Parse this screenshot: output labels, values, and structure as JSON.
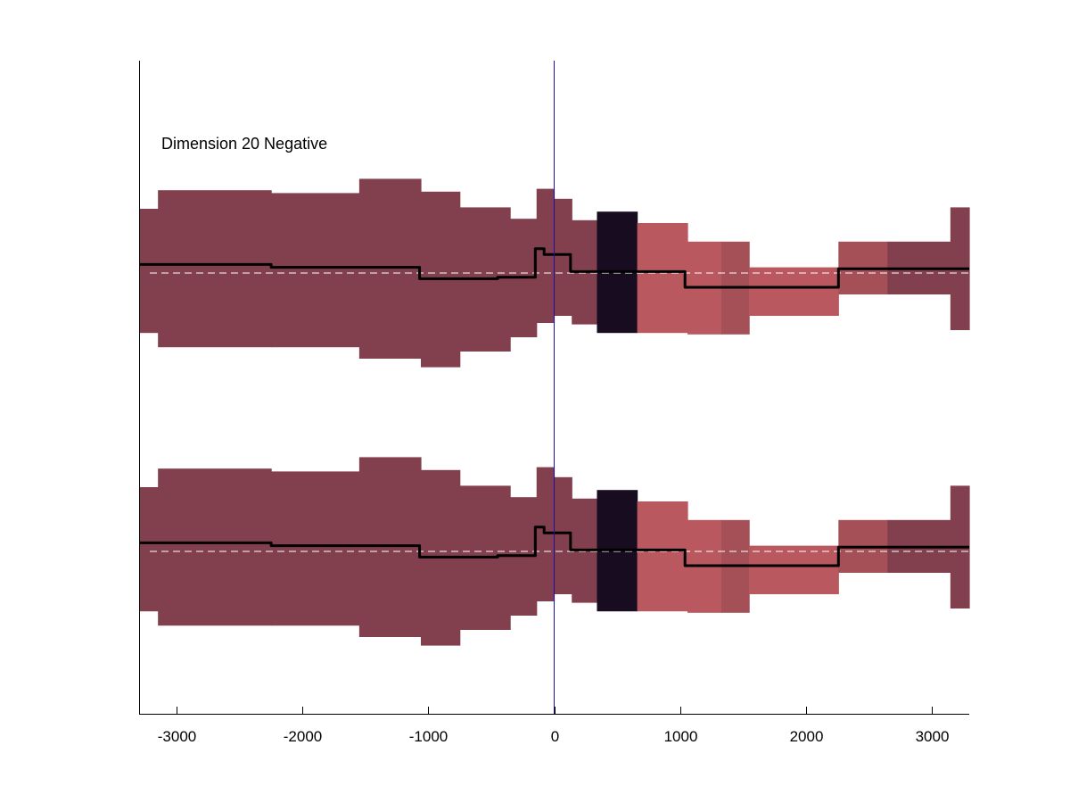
{
  "chart_data": {
    "type": "area",
    "title": "Dimension 20 Negative",
    "xlabel": "",
    "ylabel": "",
    "xlim": [
      -3300,
      3300
    ],
    "x_ticks": [
      -3000,
      -2000,
      -1000,
      0,
      1000,
      2000,
      3000
    ],
    "x_tick_labels": [
      "-3000",
      "-2000",
      "-1000",
      "0",
      "1000",
      "2000",
      "3000"
    ],
    "grid": false,
    "vertical_marker_x": 0,
    "panels": [
      {
        "name": "",
        "offset": 1
      },
      {
        "name": "",
        "offset": 0
      }
    ],
    "band_segments": [
      {
        "x0": -3300,
        "x1": -3150,
        "low": -0.42,
        "high": 0.45,
        "color": "#823f4d"
      },
      {
        "x0": -3150,
        "x1": -2250,
        "low": -0.52,
        "high": 0.58,
        "color": "#823f4d"
      },
      {
        "x0": -2250,
        "x1": -1550,
        "low": -0.52,
        "high": 0.56,
        "color": "#823f4d"
      },
      {
        "x0": -1550,
        "x1": -1060,
        "low": -0.6,
        "high": 0.66,
        "color": "#823f4d"
      },
      {
        "x0": -1060,
        "x1": -750,
        "low": -0.66,
        "high": 0.57,
        "color": "#823f4d"
      },
      {
        "x0": -750,
        "x1": -350,
        "low": -0.55,
        "high": 0.46,
        "color": "#823f4d"
      },
      {
        "x0": -350,
        "x1": -140,
        "low": -0.45,
        "high": 0.38,
        "color": "#823f4d"
      },
      {
        "x0": -140,
        "x1": 0,
        "low": -0.35,
        "high": 0.59,
        "color": "#823f4d"
      },
      {
        "x0": 0,
        "x1": 140,
        "low": -0.3,
        "high": 0.52,
        "color": "#823f4d"
      },
      {
        "x0": 140,
        "x1": 340,
        "low": -0.36,
        "high": 0.37,
        "color": "#823f4d"
      },
      {
        "x0": 340,
        "x1": 660,
        "low": -0.42,
        "high": 0.43,
        "color": "#170c20"
      },
      {
        "x0": 660,
        "x1": 1060,
        "low": -0.42,
        "high": 0.35,
        "color": "#b9595f"
      },
      {
        "x0": 1060,
        "x1": 1330,
        "low": -0.43,
        "high": 0.22,
        "color": "#b9595f"
      },
      {
        "x0": 1330,
        "x1": 1550,
        "low": -0.43,
        "high": 0.22,
        "color": "#a54f57"
      },
      {
        "x0": 1550,
        "x1": 2260,
        "low": -0.3,
        "high": 0.04,
        "color": "#b9595f"
      },
      {
        "x0": 2260,
        "x1": 2650,
        "low": -0.15,
        "high": 0.22,
        "color": "#a54f57"
      },
      {
        "x0": 2650,
        "x1": 3150,
        "low": -0.15,
        "high": 0.22,
        "color": "#823f4d"
      },
      {
        "x0": 3150,
        "x1": 3300,
        "low": -0.4,
        "high": 0.46,
        "color": "#823f4d"
      }
    ],
    "x": [
      -3300,
      -2250,
      -2250,
      -1070,
      -1070,
      -450,
      -450,
      -150,
      -150,
      -80,
      -80,
      130,
      130,
      1040,
      1040,
      2260,
      2260,
      3300
    ],
    "y": [
      0.06,
      0.06,
      0.04,
      0.04,
      -0.04,
      -0.04,
      -0.03,
      -0.03,
      0.17,
      0.17,
      0.13,
      0.13,
      0.01,
      0.01,
      -0.1,
      -0.1,
      0.03,
      0.03
    ],
    "colors": {
      "axis": "#000000",
      "mean_line": "#000000",
      "baseline_dash": "#ffffff",
      "vertical_marker": "#1b0fa8"
    }
  }
}
